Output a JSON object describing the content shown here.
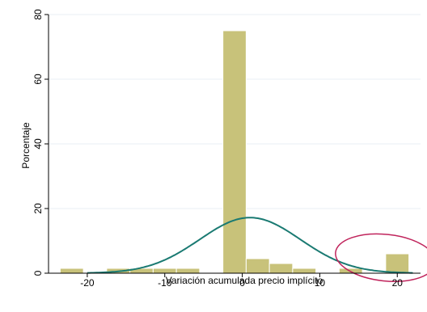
{
  "chart_data": {
    "type": "bar",
    "xlabel": "Variación acumulada precio implícito",
    "ylabel": "Porcentaje",
    "xlim": [
      -25,
      23
    ],
    "ylim": [
      0,
      80
    ],
    "x_ticks": [
      -20,
      -10,
      0,
      10,
      20
    ],
    "y_ticks": [
      0,
      20,
      40,
      60,
      80
    ],
    "grid": true,
    "bins": [
      {
        "x0": -23.5,
        "x1": -20.5,
        "value": 1.5
      },
      {
        "x0": -17.5,
        "x1": -14.5,
        "value": 1.5
      },
      {
        "x0": -14.5,
        "x1": -11.5,
        "value": 1.5
      },
      {
        "x0": -11.5,
        "x1": -8.5,
        "value": 1.5
      },
      {
        "x0": -8.5,
        "x1": -5.5,
        "value": 1.5
      },
      {
        "x0": -2.5,
        "x1": 0.5,
        "value": 75
      },
      {
        "x0": 0.5,
        "x1": 3.5,
        "value": 4.5
      },
      {
        "x0": 3.5,
        "x1": 6.5,
        "value": 3
      },
      {
        "x0": 6.5,
        "x1": 9.5,
        "value": 1.5
      },
      {
        "x0": 12.5,
        "x1": 15.5,
        "value": 1.5
      },
      {
        "x0": 15.5,
        "x1": 18.5,
        "value": 0
      },
      {
        "x0": 18.5,
        "x1": 21.5,
        "value": 6
      }
    ],
    "density_curve": {
      "type": "normal",
      "mean": 1,
      "peak": 17.2,
      "sd": 6.5
    },
    "annotation": {
      "shape": "ellipse",
      "center_x": 18.5,
      "center_y": 4.8,
      "rx": 6.5,
      "ry": 7.2
    }
  },
  "colors": {
    "bar_fill": "#c8c27a",
    "bar_stroke": "#ffffff",
    "curve": "#1a7a72",
    "ellipse": "#c0245c",
    "grid": "#e8eff5",
    "axis": "#000000"
  }
}
